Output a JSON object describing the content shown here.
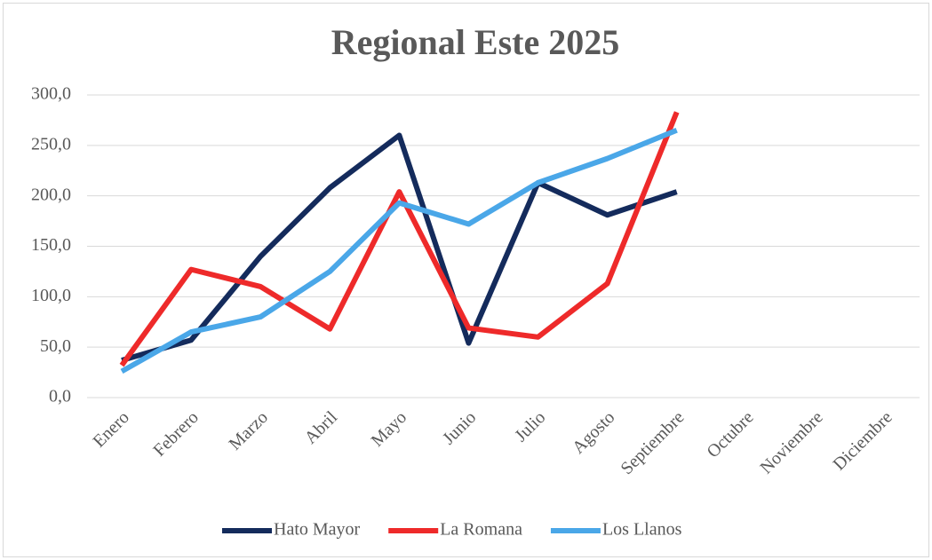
{
  "chart_data": {
    "type": "line",
    "title": "Regional Este 2025",
    "categories": [
      "Enero",
      "Febrero",
      "Marzo",
      "Abril",
      "Mayo",
      "Junio",
      "Julio",
      "Agosto",
      "Septiembre",
      "Octubre",
      "Noviembre",
      "Diciembre"
    ],
    "series": [
      {
        "name": "Hato Mayor",
        "color": "#142b5c",
        "values": [
          37,
          57,
          140,
          208,
          260,
          54,
          213,
          181,
          204,
          null,
          null,
          null
        ]
      },
      {
        "name": "La Romana",
        "color": "#ee2a2a",
        "values": [
          32,
          127,
          110,
          68,
          204,
          69,
          60,
          113,
          283,
          null,
          null,
          null
        ]
      },
      {
        "name": "Los Llanos",
        "color": "#4aa7e8",
        "values": [
          26,
          65,
          80,
          125,
          193,
          172,
          213,
          237,
          265,
          null,
          null,
          null
        ]
      }
    ],
    "ylim": [
      0,
      300
    ],
    "yticks": [
      {
        "value": 0,
        "label": "0,0"
      },
      {
        "value": 50,
        "label": "50,0"
      },
      {
        "value": 100,
        "label": "100,0"
      },
      {
        "value": 150,
        "label": "150,0"
      },
      {
        "value": 200,
        "label": "200,0"
      },
      {
        "value": 250,
        "label": "250,0"
      },
      {
        "value": 300,
        "label": "300,0"
      }
    ],
    "grid": true,
    "legend": "bottom"
  }
}
